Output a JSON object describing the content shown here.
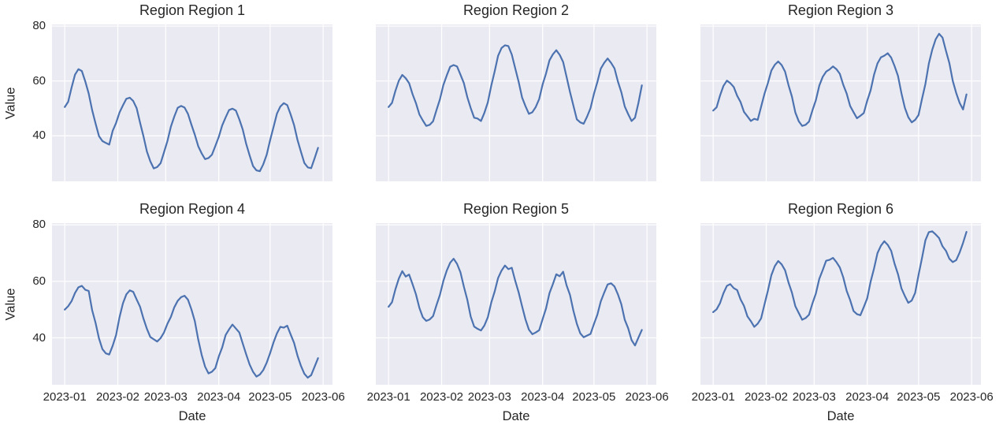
{
  "figure": {
    "background": "#ffffff",
    "axes_background": "#eaeaf2",
    "grid_color": "#ffffff",
    "line_color": "#4c72b0",
    "text_color": "#262626"
  },
  "chart_axes": {
    "x_tick_labels": [
      "2023-01",
      "2023-02",
      "2023-03",
      "2023-04",
      "2023-05",
      "2023-06"
    ],
    "x_tick_days": [
      0,
      31,
      59,
      90,
      120,
      151
    ],
    "y_ticks": [
      40,
      60,
      80
    ],
    "ylim": [
      23.4,
      80.6
    ],
    "xlim_days": [
      -7.45,
      156.45
    ],
    "grid": true,
    "legend": "none"
  },
  "chart_data": [
    {
      "type": "line",
      "title": "Region Region 1",
      "xlabel": "Date",
      "ylabel": "Value",
      "x_start_date": "2023-01-01",
      "x_step_days": 2,
      "values": [
        50.5,
        52.4,
        57.6,
        62.3,
        64.3,
        63.6,
        59.8,
        55.4,
        49.4,
        44.5,
        39.9,
        38.1,
        37.4,
        36.8,
        41.8,
        44.7,
        48.5,
        51.1,
        53.5,
        53.9,
        52.7,
        50.1,
        44.8,
        39.8,
        34.3,
        30.7,
        28.1,
        28.6,
        30.0,
        34.0,
        38.1,
        43.3,
        47.0,
        50.2,
        50.9,
        50.3,
        48.0,
        44.1,
        40.4,
        36.2,
        33.6,
        31.5,
        31.9,
        33.1,
        36.3,
        39.6,
        43.8,
        46.7,
        49.4,
        49.9,
        49.2,
        46.0,
        42.3,
        37.1,
        32.9,
        29.0,
        27.4,
        27.1,
        29.6,
        33.1,
        38.4,
        43.2,
        48.1,
        50.7,
        51.9,
        51.2,
        47.8,
        43.9,
        38.5,
        34.2,
        30.1,
        28.5,
        28.2,
        31.8,
        35.6
      ]
    },
    {
      "type": "line",
      "title": "Region Region 2",
      "xlabel": "Date",
      "ylabel": "Value",
      "x_start_date": "2023-01-01",
      "x_step_days": 2,
      "values": [
        50.5,
        52.0,
        56.4,
        60.1,
        62.2,
        61.0,
        59.2,
        55.2,
        51.9,
        47.8,
        45.6,
        43.6,
        44.0,
        45.3,
        49.4,
        53.3,
        58.5,
        62.0,
        65.2,
        65.8,
        65.3,
        62.3,
        59.2,
        54.1,
        50.1,
        46.6,
        46.3,
        45.4,
        48.4,
        52.2,
        58.3,
        63.5,
        69.2,
        72.0,
        73.0,
        72.7,
        69.6,
        64.6,
        59.7,
        54.0,
        50.8,
        48.0,
        48.6,
        50.5,
        53.4,
        58.7,
        62.7,
        67.5,
        69.7,
        71.2,
        69.5,
        66.9,
        61.5,
        56.0,
        51.0,
        46.0,
        44.9,
        44.4,
        47.0,
        50.1,
        55.3,
        59.6,
        64.5,
        66.6,
        68.2,
        66.6,
        64.6,
        59.8,
        55.9,
        50.7,
        47.9,
        45.4,
        46.6,
        52.0,
        58.4
      ]
    },
    {
      "type": "line",
      "title": "Region Region 3",
      "xlabel": "Date",
      "ylabel": "Value",
      "x_start_date": "2023-01-01",
      "x_step_days": 2,
      "values": [
        49.2,
        50.4,
        54.7,
        58.2,
        60.1,
        59.2,
        57.8,
        54.6,
        52.3,
        48.7,
        47.1,
        45.4,
        46.2,
        45.8,
        50.6,
        55.4,
        59.3,
        63.8,
        65.9,
        67.1,
        65.8,
        63.4,
        58.5,
        54.3,
        48.5,
        45.3,
        43.6,
        44.0,
        45.2,
        49.3,
        53.0,
        58.3,
        61.5,
        63.4,
        64.2,
        65.3,
        64.3,
        62.6,
        58.6,
        55.4,
        50.9,
        48.6,
        46.4,
        47.3,
        48.3,
        52.8,
        56.6,
        62.3,
        66.4,
        68.6,
        69.2,
        70.1,
        68.5,
        65.4,
        61.8,
        55.5,
        50.2,
        46.8,
        44.9,
        45.8,
        47.6,
        53.4,
        58.9,
        66.3,
        71.4,
        75.2,
        77.2,
        75.8,
        71.0,
        66.5,
        60.0,
        55.6,
        52.0,
        49.6,
        55.1
      ]
    },
    {
      "type": "line",
      "title": "Region Region 4",
      "xlabel": "Date",
      "ylabel": "Value",
      "x_start_date": "2023-01-01",
      "x_step_days": 2,
      "values": [
        50.0,
        51.2,
        53.0,
        55.9,
        57.9,
        58.4,
        57.0,
        56.6,
        49.8,
        45.3,
        39.8,
        36.0,
        34.5,
        34.1,
        37.2,
        41.0,
        47.3,
        52.2,
        55.4,
        56.8,
        56.3,
        53.6,
        51.0,
        46.8,
        43.2,
        40.3,
        39.5,
        38.7,
        39.9,
        41.9,
        45.0,
        47.4,
        50.8,
        53.1,
        54.4,
        54.9,
        53.5,
        50.1,
        45.9,
        39.4,
        34.0,
        29.8,
        27.4,
        28.0,
        29.3,
        33.4,
        36.6,
        41.0,
        43.0,
        44.7,
        43.3,
        41.9,
        38.0,
        34.2,
        30.6,
        28.0,
        26.3,
        27.0,
        28.6,
        31.2,
        34.6,
        38.4,
        41.6,
        43.9,
        43.6,
        44.3,
        41.2,
        38.2,
        33.7,
        30.1,
        27.3,
        25.9,
        26.8,
        29.8,
        32.8
      ]
    },
    {
      "type": "line",
      "title": "Region Region 5",
      "xlabel": "Date",
      "ylabel": "Value",
      "x_start_date": "2023-01-01",
      "x_step_days": 2,
      "values": [
        51.0,
        52.6,
        57.2,
        61.0,
        63.6,
        61.7,
        62.4,
        59.0,
        55.4,
        50.6,
        47.3,
        46.0,
        46.5,
        47.7,
        51.6,
        55.2,
        60.1,
        63.8,
        66.6,
        68.0,
        66.2,
        63.2,
        58.1,
        53.5,
        47.5,
        44.0,
        43.2,
        42.6,
        44.4,
        47.3,
        52.5,
        56.4,
        61.2,
        63.8,
        65.6,
        64.3,
        64.8,
        60.2,
        56.1,
        51.2,
        46.5,
        42.9,
        41.3,
        41.9,
        42.7,
        46.6,
        50.4,
        55.8,
        59.0,
        62.5,
        61.8,
        63.4,
        58.6,
        55.2,
        49.6,
        45.0,
        41.6,
        40.2,
        40.8,
        41.4,
        44.9,
        48.2,
        52.9,
        56.0,
        58.9,
        59.3,
        58.2,
        55.4,
        51.9,
        46.4,
        43.4,
        39.2,
        37.3,
        40.1,
        42.8
      ]
    },
    {
      "type": "line",
      "title": "Region Region 6",
      "xlabel": "Date",
      "ylabel": "Value",
      "x_start_date": "2023-01-01",
      "x_step_days": 2,
      "values": [
        49.1,
        50.1,
        52.3,
        55.8,
        58.4,
        59.0,
        57.6,
        56.9,
        53.6,
        51.3,
        47.6,
        45.9,
        43.9,
        45.0,
        46.9,
        51.9,
        56.8,
        62.2,
        65.4,
        67.2,
        66.0,
        63.9,
        59.6,
        56.0,
        51.2,
        48.8,
        46.4,
        47.0,
        48.2,
        52.2,
        55.7,
        60.9,
        64.0,
        67.3,
        67.6,
        68.3,
        66.8,
        64.9,
        61.4,
        56.6,
        53.4,
        49.5,
        48.4,
        48.0,
        50.9,
        54.0,
        59.9,
        64.6,
        70.0,
        72.6,
        74.2,
        72.9,
        70.8,
        66.2,
        62.5,
        57.5,
        54.8,
        52.4,
        53.2,
        55.9,
        62.3,
        68.2,
        74.5,
        77.4,
        77.7,
        76.6,
        75.3,
        72.4,
        70.8,
        68.0,
        66.8,
        67.5,
        70.2,
        73.6,
        77.5
      ]
    }
  ]
}
